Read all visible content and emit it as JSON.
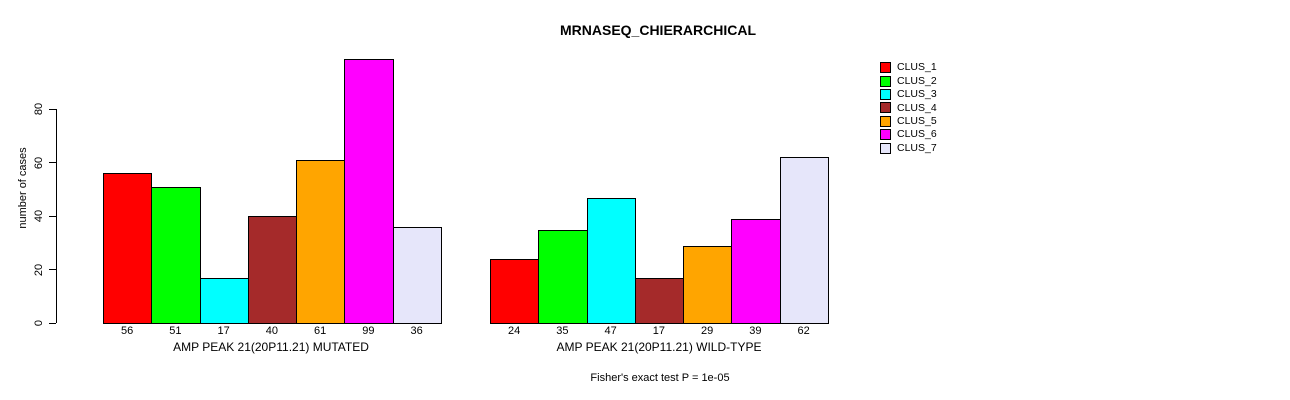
{
  "chart_data": {
    "type": "bar",
    "title": "MRNASEQ_CHIERARCHICAL",
    "ylabel": "number of cases",
    "ylim": [
      0,
      99
    ],
    "yticks": [
      0,
      20,
      40,
      60,
      80
    ],
    "grid": false,
    "legend_position": "right",
    "clusters": [
      {
        "label": "CLUS_1",
        "color": "#FF0000"
      },
      {
        "label": "CLUS_2",
        "color": "#00FF00"
      },
      {
        "label": "CLUS_3",
        "color": "#00FFFF"
      },
      {
        "label": "CLUS_4",
        "color": "#A52A2A"
      },
      {
        "label": "CLUS_5",
        "color": "#FFA500"
      },
      {
        "label": "CLUS_6",
        "color": "#FF00FF"
      },
      {
        "label": "CLUS_7",
        "color": "#E6E6FA"
      }
    ],
    "groups": [
      {
        "label": "AMP PEAK 21(20P11.21) MUTATED",
        "values": [
          56,
          51,
          17,
          40,
          61,
          99,
          36
        ]
      },
      {
        "label": "AMP PEAK 21(20P11.21) WILD-TYPE",
        "values": [
          24,
          35,
          47,
          17,
          29,
          39,
          62
        ]
      }
    ],
    "footnote": "Fisher's exact test P = 1e-05"
  }
}
